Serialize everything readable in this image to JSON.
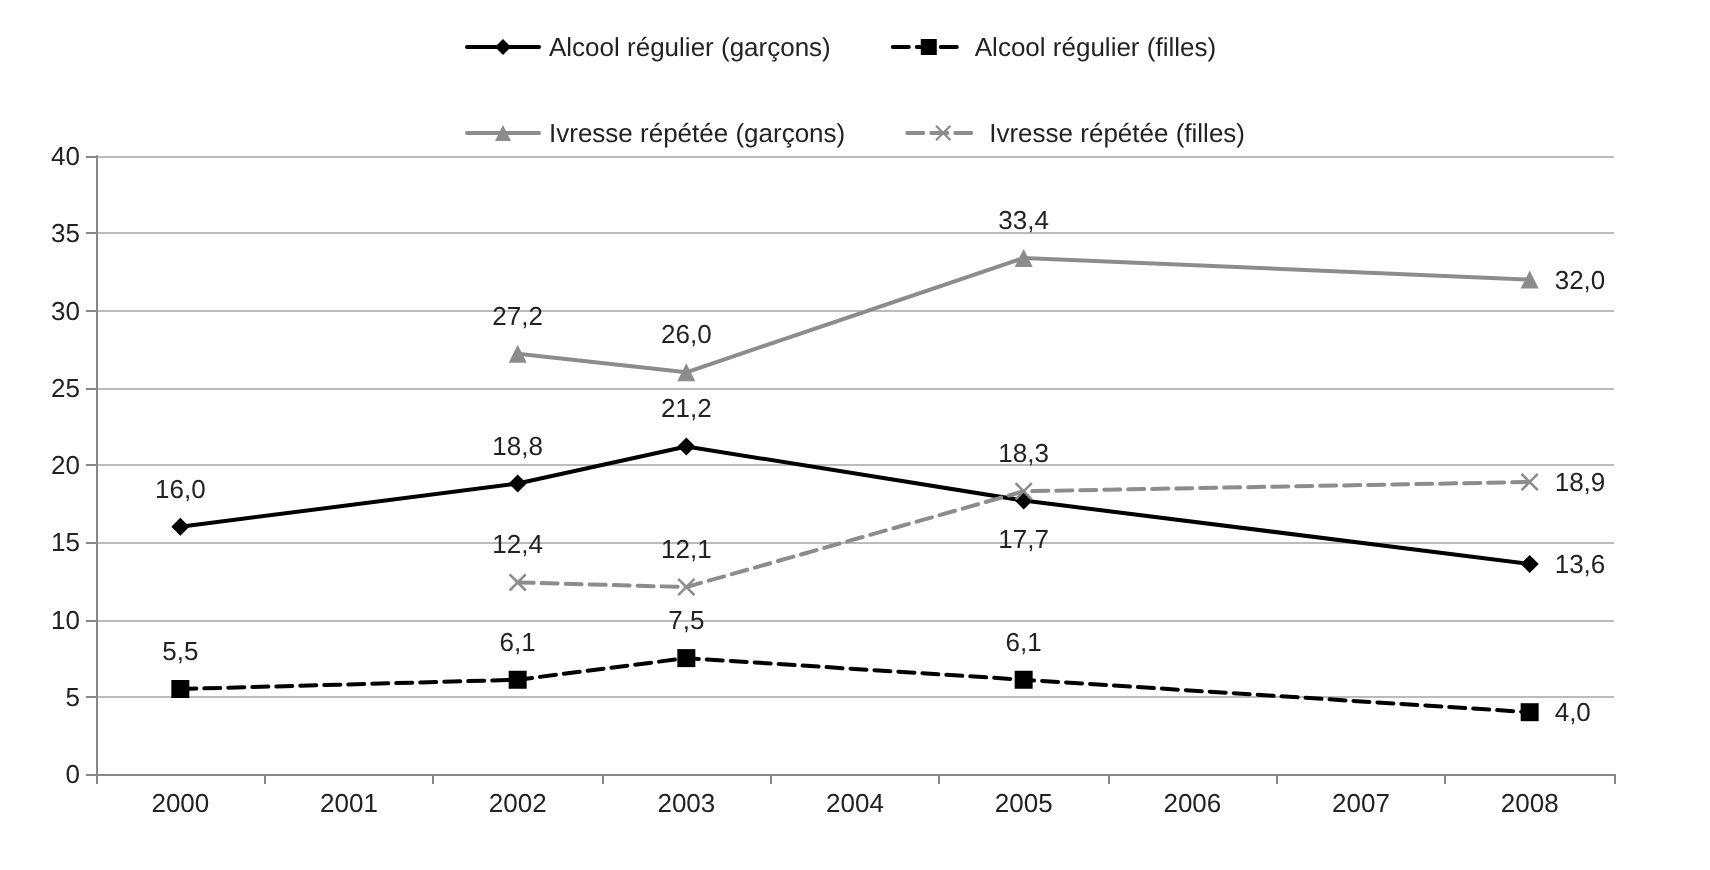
{
  "chart_data": {
    "type": "line",
    "categories": [
      "2000",
      "2001",
      "2002",
      "2003",
      "2004",
      "2005",
      "2006",
      "2007",
      "2008"
    ],
    "series": [
      {
        "name": "Alcool régulier (garçons)",
        "color": "#000000",
        "marker": "diamond",
        "line_style": "solid",
        "values": [
          16.0,
          null,
          18.8,
          21.2,
          null,
          17.7,
          null,
          null,
          13.6
        ],
        "value_labels": [
          "16,0",
          null,
          "18,8",
          "21,2",
          null,
          "17,7",
          null,
          null,
          "13,6"
        ]
      },
      {
        "name": "Alcool régulier (filles)",
        "color": "#000000",
        "marker": "square",
        "line_style": "dashed",
        "values": [
          5.5,
          null,
          6.1,
          7.5,
          null,
          6.1,
          null,
          null,
          4.0
        ],
        "value_labels": [
          "5,5",
          null,
          "6,1",
          "7,5",
          null,
          "6,1",
          null,
          null,
          "4,0"
        ]
      },
      {
        "name": "Ivresse répétée (garçons)",
        "color": "#8c8c8c",
        "marker": "triangle",
        "line_style": "solid",
        "values": [
          null,
          null,
          27.2,
          26.0,
          null,
          33.4,
          null,
          null,
          32.0
        ],
        "value_labels": [
          null,
          null,
          "27,2",
          "26,0",
          null,
          "33,4",
          null,
          null,
          "32,0"
        ]
      },
      {
        "name": "Ivresse répétée (filles)",
        "color": "#8c8c8c",
        "marker": "cross",
        "line_style": "dashed",
        "values": [
          null,
          null,
          12.4,
          12.1,
          null,
          18.3,
          null,
          null,
          18.9
        ],
        "value_labels": [
          null,
          null,
          "12,4",
          "12,1",
          null,
          "18,3",
          null,
          null,
          "18,9"
        ]
      }
    ],
    "ylim": [
      0,
      40
    ],
    "yticks": [
      0,
      5,
      10,
      15,
      20,
      25,
      30,
      35,
      40
    ],
    "grid": "y",
    "legend": "top"
  }
}
